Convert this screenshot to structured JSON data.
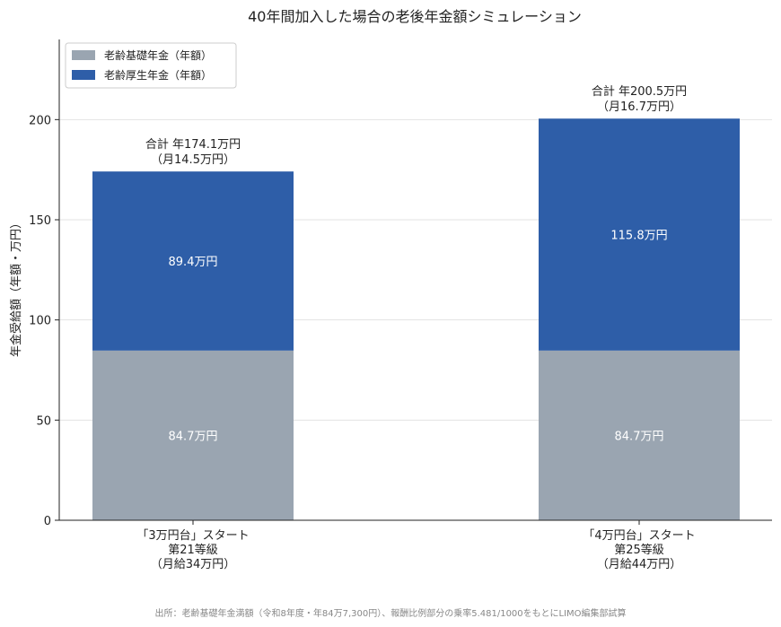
{
  "chart_data": {
    "type": "bar",
    "stacked": true,
    "title": "40年間加入した場合の老後年金額シミュレーション",
    "ylabel": "年金受給額（年額・万円）",
    "xlabel": "",
    "ylim": [
      0,
      240
    ],
    "yticks": [
      0,
      50,
      100,
      150,
      200
    ],
    "grid": true,
    "legend_position": "top-left",
    "categories": [
      [
        "「3万円台」スタート",
        "第21等級",
        "（月給34万円）"
      ],
      [
        "「4万円台」スタート",
        "第25等級",
        "（月給44万円）"
      ]
    ],
    "series": [
      {
        "name": "老齢基礎年金（年額）",
        "color": "#9aa5b1",
        "values": [
          84.7,
          84.7
        ],
        "labels": [
          "84.7万円",
          "84.7万円"
        ]
      },
      {
        "name": "老齢厚生年金（年額）",
        "color": "#2e5ea8",
        "values": [
          89.4,
          115.8
        ],
        "labels": [
          "89.4万円",
          "115.8万円"
        ]
      }
    ],
    "totals": [
      {
        "value": 174.1,
        "lines": [
          "合計 年174.1万円",
          "（月14.5万円）"
        ]
      },
      {
        "value": 200.5,
        "lines": [
          "合計 年200.5万円",
          "（月16.7万円）"
        ]
      }
    ],
    "source": "出所：老齢基礎年金満額（令和8年度・年84万7,300円）、報酬比例部分の乗率5.481/1000をもとにLIMO編集部試算"
  }
}
